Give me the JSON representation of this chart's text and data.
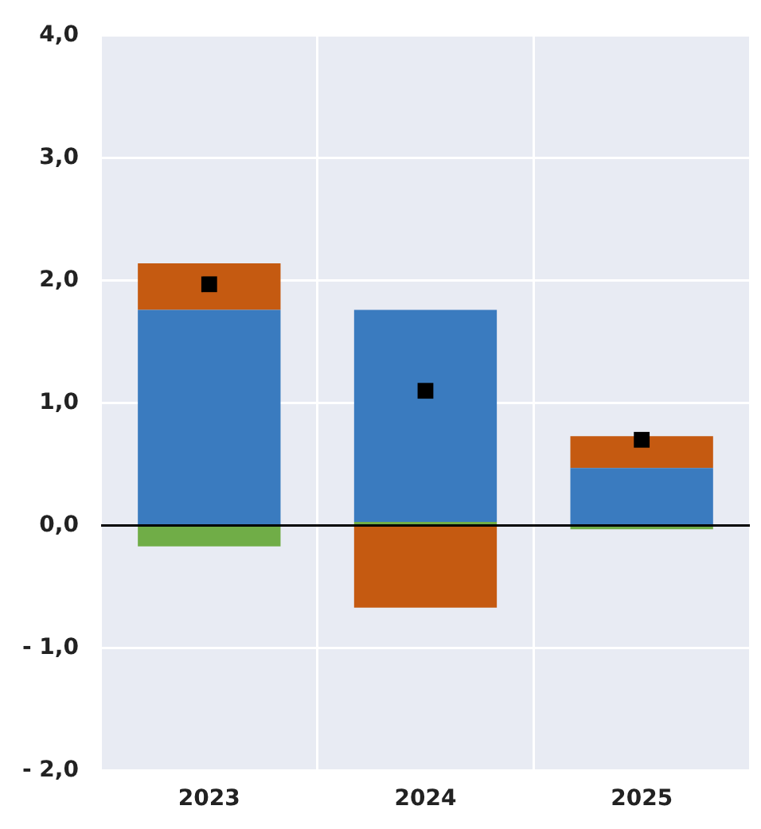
{
  "chart_data": {
    "type": "bar",
    "stacked": true,
    "categories": [
      "2023",
      "2024",
      "2025"
    ],
    "series": [
      {
        "color": "#70ad47",
        "values": [
          -0.17,
          0.03,
          -0.03
        ]
      },
      {
        "color": "#3a7bbf",
        "values": [
          1.76,
          1.73,
          0.47
        ]
      },
      {
        "color": "#c55a11",
        "values": [
          0.38,
          -0.67,
          0.26
        ]
      },
      {
        "type": "scatter",
        "color": "#000000",
        "values": [
          1.97,
          1.1,
          0.7
        ]
      }
    ],
    "marker": "square",
    "ylim": [
      -2,
      4
    ],
    "yticks": [
      {
        "value": -2,
        "label": "- 2,0"
      },
      {
        "value": -1,
        "label": "- 1,0"
      },
      {
        "value": 0,
        "label": "0,0"
      },
      {
        "value": 1,
        "label": "1,0"
      },
      {
        "value": 2,
        "label": "2,0"
      },
      {
        "value": 3,
        "label": "3,0"
      },
      {
        "value": 4,
        "label": "4,0"
      }
    ],
    "grid": true,
    "legend": false
  }
}
